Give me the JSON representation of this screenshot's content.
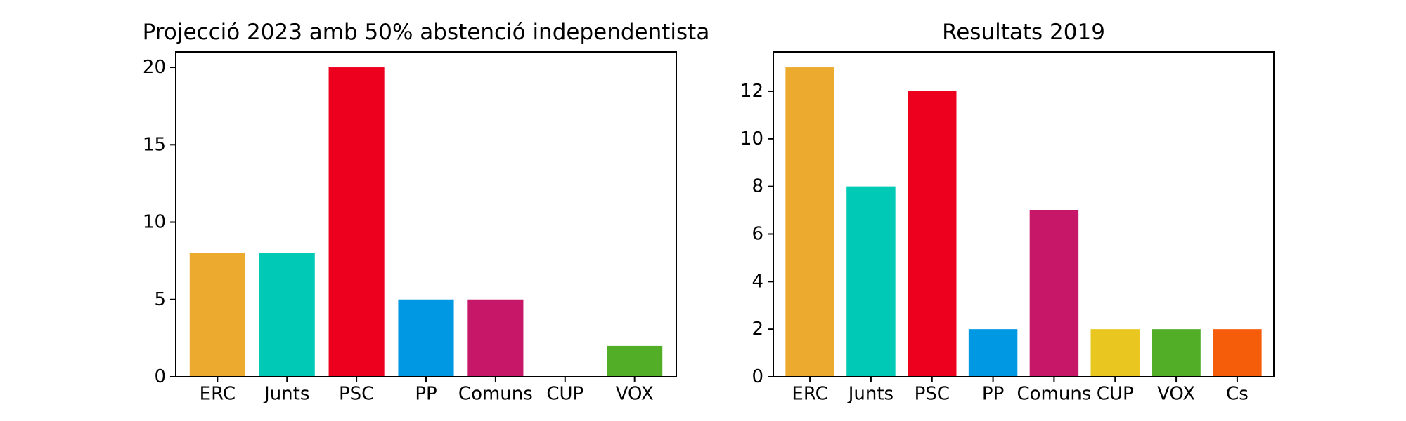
{
  "chart_data": [
    {
      "type": "bar",
      "title": "Projecció 2023 amb 50% abstenció independentista",
      "xlabel": "",
      "ylabel": "",
      "categories": [
        "ERC",
        "Junts",
        "PSC",
        "PP",
        "Comuns",
        "CUP",
        "VOX"
      ],
      "values": [
        8,
        8,
        20,
        5,
        5,
        0,
        2
      ],
      "colors": [
        "#ECAB2E",
        "#00C9B5",
        "#EC001D",
        "#0098E3",
        "#C61768",
        "#E9C720",
        "#51AE26"
      ],
      "ylim": [
        0,
        21
      ],
      "yticks": [
        0,
        5,
        10,
        15,
        20
      ],
      "ytick_labels": [
        "0",
        "5",
        "10",
        "15",
        "20"
      ],
      "grid": false,
      "legend": "none"
    },
    {
      "type": "bar",
      "title": "Resultats 2019",
      "xlabel": "",
      "ylabel": "",
      "categories": [
        "ERC",
        "Junts",
        "PSC",
        "PP",
        "Comuns",
        "CUP",
        "VOX",
        "Cs"
      ],
      "values": [
        13,
        8,
        12,
        2,
        7,
        2,
        2,
        2
      ],
      "colors": [
        "#ECAB2E",
        "#00C9B5",
        "#EC001D",
        "#0098E3",
        "#C61768",
        "#E9C720",
        "#51AE26",
        "#F55D0B"
      ],
      "ylim": [
        0,
        13.65
      ],
      "yticks": [
        0,
        2,
        4,
        6,
        8,
        10,
        12
      ],
      "ytick_labels": [
        "0",
        "2",
        "4",
        "6",
        "8",
        "10",
        "12"
      ],
      "grid": false,
      "legend": "none"
    }
  ]
}
